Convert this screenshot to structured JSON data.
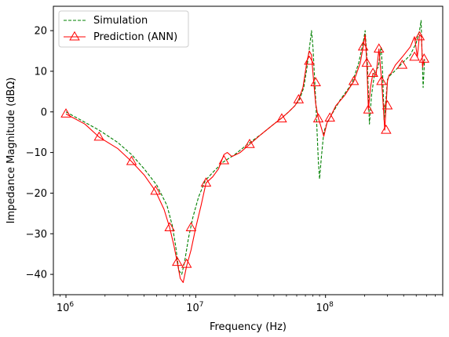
{
  "chart_data": {
    "type": "line",
    "xlabel": "Frequency (Hz)",
    "ylabel": "Impedance Magnitude (dBΩ)",
    "xscale": "log",
    "xlim": [
      800000,
      800000000
    ],
    "ylim": [
      -45,
      26
    ],
    "x_tick_labels": [
      {
        "value": 1000000,
        "base": "10",
        "exp": "6"
      },
      {
        "value": 10000000,
        "base": "10",
        "exp": "7"
      },
      {
        "value": 100000000,
        "base": "10",
        "exp": "8"
      }
    ],
    "y_ticks": [
      -40,
      -30,
      -20,
      -10,
      0,
      10,
      20
    ],
    "y_tick_labels": [
      "−40",
      "−30",
      "−20",
      "−10",
      "0",
      "10",
      "20"
    ],
    "grid": false,
    "legend_position": "top-left",
    "series": [
      {
        "name": "Simulation",
        "color": "#008000",
        "style": "dashed",
        "x": [
          1000000,
          1300000,
          1800000,
          2500000,
          3200000,
          4000000,
          5000000,
          6000000,
          6600000,
          7000000,
          7400000,
          7800000,
          8200000,
          8800000,
          9500000,
          10500000,
          11800000,
          13000000,
          16000000,
          20000000,
          25000000,
          32000000,
          40000000,
          46000000,
          52000000,
          58000000,
          63000000,
          68000000,
          72000000,
          76000000,
          78000000,
          80000000,
          84000000,
          88000000,
          90000000,
          93000000,
          97000000,
          102000000,
          110000000,
          130000000,
          160000000,
          180000000,
          195000000,
          202000000,
          210000000,
          218000000,
          226000000,
          240000000,
          255000000,
          268000000,
          275000000,
          283000000,
          292000000,
          300000000,
          315000000,
          340000000,
          390000000,
          450000000,
          500000000,
          530000000,
          545000000,
          555000000,
          565000000,
          580000000
        ],
        "y": [
          0,
          -2,
          -4.5,
          -7.5,
          -10.5,
          -14,
          -18,
          -23,
          -28,
          -33,
          -39,
          -40,
          -37,
          -31,
          -26,
          -21,
          -17,
          -15.5,
          -12.5,
          -10.5,
          -8,
          -5.5,
          -3,
          -1.5,
          0,
          1.5,
          3,
          6,
          11,
          17,
          20,
          16,
          3,
          -12,
          -16.5,
          -11,
          -5,
          -3,
          -1,
          3,
          7,
          12,
          17,
          20,
          12,
          -3,
          4,
          10,
          11,
          16,
          10,
          -2,
          3,
          8,
          9,
          10,
          12,
          14,
          17,
          20,
          22.5,
          14,
          6,
          13
        ]
      },
      {
        "name": "Prediction (ANN)",
        "color": "#ff0000",
        "style": "solid",
        "marker": "triangle",
        "x": [
          1000000,
          1400000,
          1800000,
          2500000,
          3200000,
          4000000,
          4900000,
          5700000,
          6300000,
          6800000,
          7200000,
          7600000,
          8000000,
          8500000,
          9200000,
          10000000,
          11000000,
          12000000,
          13500000,
          15000000,
          16500000,
          17500000,
          19000000,
          22000000,
          26000000,
          32000000,
          40000000,
          46000000,
          52000000,
          58000000,
          62000000,
          67000000,
          72000000,
          75000000,
          78000000,
          81000000,
          84000000,
          88000000,
          92000000,
          97000000,
          103000000,
          108000000,
          120000000,
          140000000,
          165000000,
          185000000,
          195000000,
          202000000,
          208000000,
          214000000,
          222000000,
          232000000,
          245000000,
          258000000,
          270000000,
          278000000,
          286000000,
          293000000,
          300000000,
          308000000,
          320000000,
          345000000,
          390000000,
          450000000,
          485000000,
          510000000,
          530000000,
          548000000,
          560000000,
          575000000
        ],
        "y": [
          -0.5,
          -3,
          -6.2,
          -9,
          -12.2,
          -15.5,
          -19.5,
          -24,
          -28.5,
          -33,
          -37,
          -41,
          -42,
          -38,
          -34,
          -28.5,
          -23,
          -17.5,
          -16,
          -14,
          -10.5,
          -10,
          -11,
          -10,
          -8,
          -5.5,
          -3,
          -1.5,
          0,
          1.5,
          3,
          6,
          12.5,
          15,
          14,
          7.5,
          2,
          -1.5,
          -3.5,
          -6,
          -2.5,
          -1.5,
          1.5,
          4,
          7.5,
          12,
          16,
          19,
          12,
          0.5,
          6,
          9.5,
          9,
          15.5,
          8,
          2,
          -4.5,
          1.5,
          7.5,
          9,
          9.5,
          11.5,
          13.5,
          16,
          18.5,
          13.5,
          19,
          18.5,
          11,
          13
        ]
      }
    ],
    "marker_points": {
      "x": [
        1000000,
        1800000,
        3200000,
        4900000,
        6300000,
        7200000,
        8500000,
        9200000,
        12000000,
        16500000,
        26000000,
        46000000,
        62000000,
        75000000,
        84000000,
        88000000,
        108000000,
        165000000,
        195000000,
        208000000,
        214000000,
        232000000,
        258000000,
        270000000,
        293000000,
        300000000,
        390000000,
        485000000,
        530000000,
        575000000
      ],
      "y": [
        -0.5,
        -6.2,
        -12.2,
        -19.5,
        -28.5,
        -37,
        -37.5,
        -28.5,
        -17.5,
        -12,
        -8,
        -1.7,
        3,
        12.5,
        7.2,
        -1.7,
        -1.5,
        7.5,
        16,
        12,
        0.5,
        9.5,
        15.5,
        7.5,
        -4.5,
        1.5,
        11.5,
        13.5,
        18.5,
        13
      ]
    }
  }
}
